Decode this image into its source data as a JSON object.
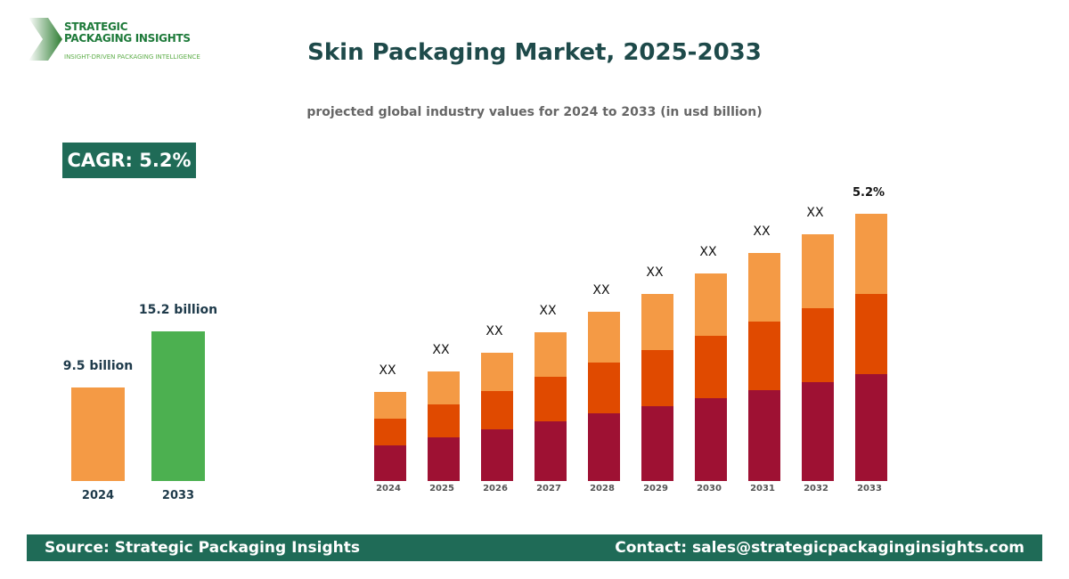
{
  "logo": {
    "line1": "STRATEGIC",
    "line2": "PACKAGING INSIGHTS",
    "tagline": "INSIGHT-DRIVEN PACKAGING INTELLIGENCE"
  },
  "header": {
    "title": "Skin Packaging Market, 2025-2033",
    "subtitle": "projected global industry values for 2024 to 2033 (in usd billion)"
  },
  "cagr_badge": "CAGR: 5.2%",
  "chart_data": [
    {
      "type": "bar",
      "categories": [
        "2024",
        "2033"
      ],
      "values": [
        9.5,
        15.2
      ],
      "data_labels": [
        "9.5 billion",
        "15.2 billion"
      ],
      "colors": [
        "#f49a45",
        "#4cb050"
      ],
      "ylim": [
        0,
        19
      ]
    },
    {
      "type": "bar",
      "stacked": true,
      "categories": [
        "2024",
        "2025",
        "2026",
        "2027",
        "2028",
        "2029",
        "2030",
        "2031",
        "2032",
        "2033"
      ],
      "series": [
        {
          "values": [
            40,
            49,
            58,
            67,
            76,
            84,
            93,
            102,
            111,
            120
          ],
          "color": "#9e1133"
        },
        {
          "values": [
            30,
            37,
            43,
            50,
            57,
            63,
            70,
            77,
            83,
            90
          ],
          "color": "#e04a00"
        },
        {
          "values": [
            30,
            37,
            43,
            50,
            57,
            63,
            70,
            77,
            83,
            90
          ],
          "color": "#f49a45"
        }
      ],
      "data_labels": [
        "XX",
        "XX",
        "XX",
        "XX",
        "XX",
        "XX",
        "XX",
        "XX",
        "XX",
        "5.2%"
      ],
      "ylim": [
        0,
        300
      ],
      "grid": false
    }
  ],
  "footer": {
    "source": "Source: Strategic Packaging Insights",
    "contact": "Contact: sales@strategicpackaginginsights.com"
  }
}
